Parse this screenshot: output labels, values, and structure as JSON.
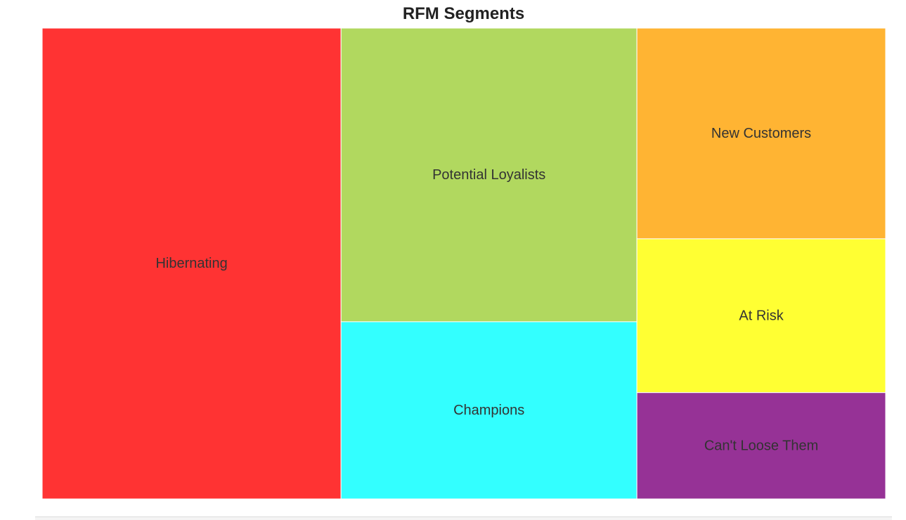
{
  "chart_data": {
    "type": "treemap",
    "title": "RFM Segments",
    "segments": [
      {
        "name": "Hibernating",
        "value": 29.8,
        "color": "#ff3333"
      },
      {
        "name": "Potential Loyalists",
        "value": 18.4,
        "color": "#b1d85f"
      },
      {
        "name": "Champions",
        "value": 11.1,
        "color": "#33ffff"
      },
      {
        "name": "New Customers",
        "value": 11.1,
        "color": "#ffb433"
      },
      {
        "name": "At Risk",
        "value": 8.1,
        "color": "#ffff33"
      },
      {
        "name": "Can't Loose Them",
        "value": 5.6,
        "color": "#963296"
      }
    ]
  }
}
